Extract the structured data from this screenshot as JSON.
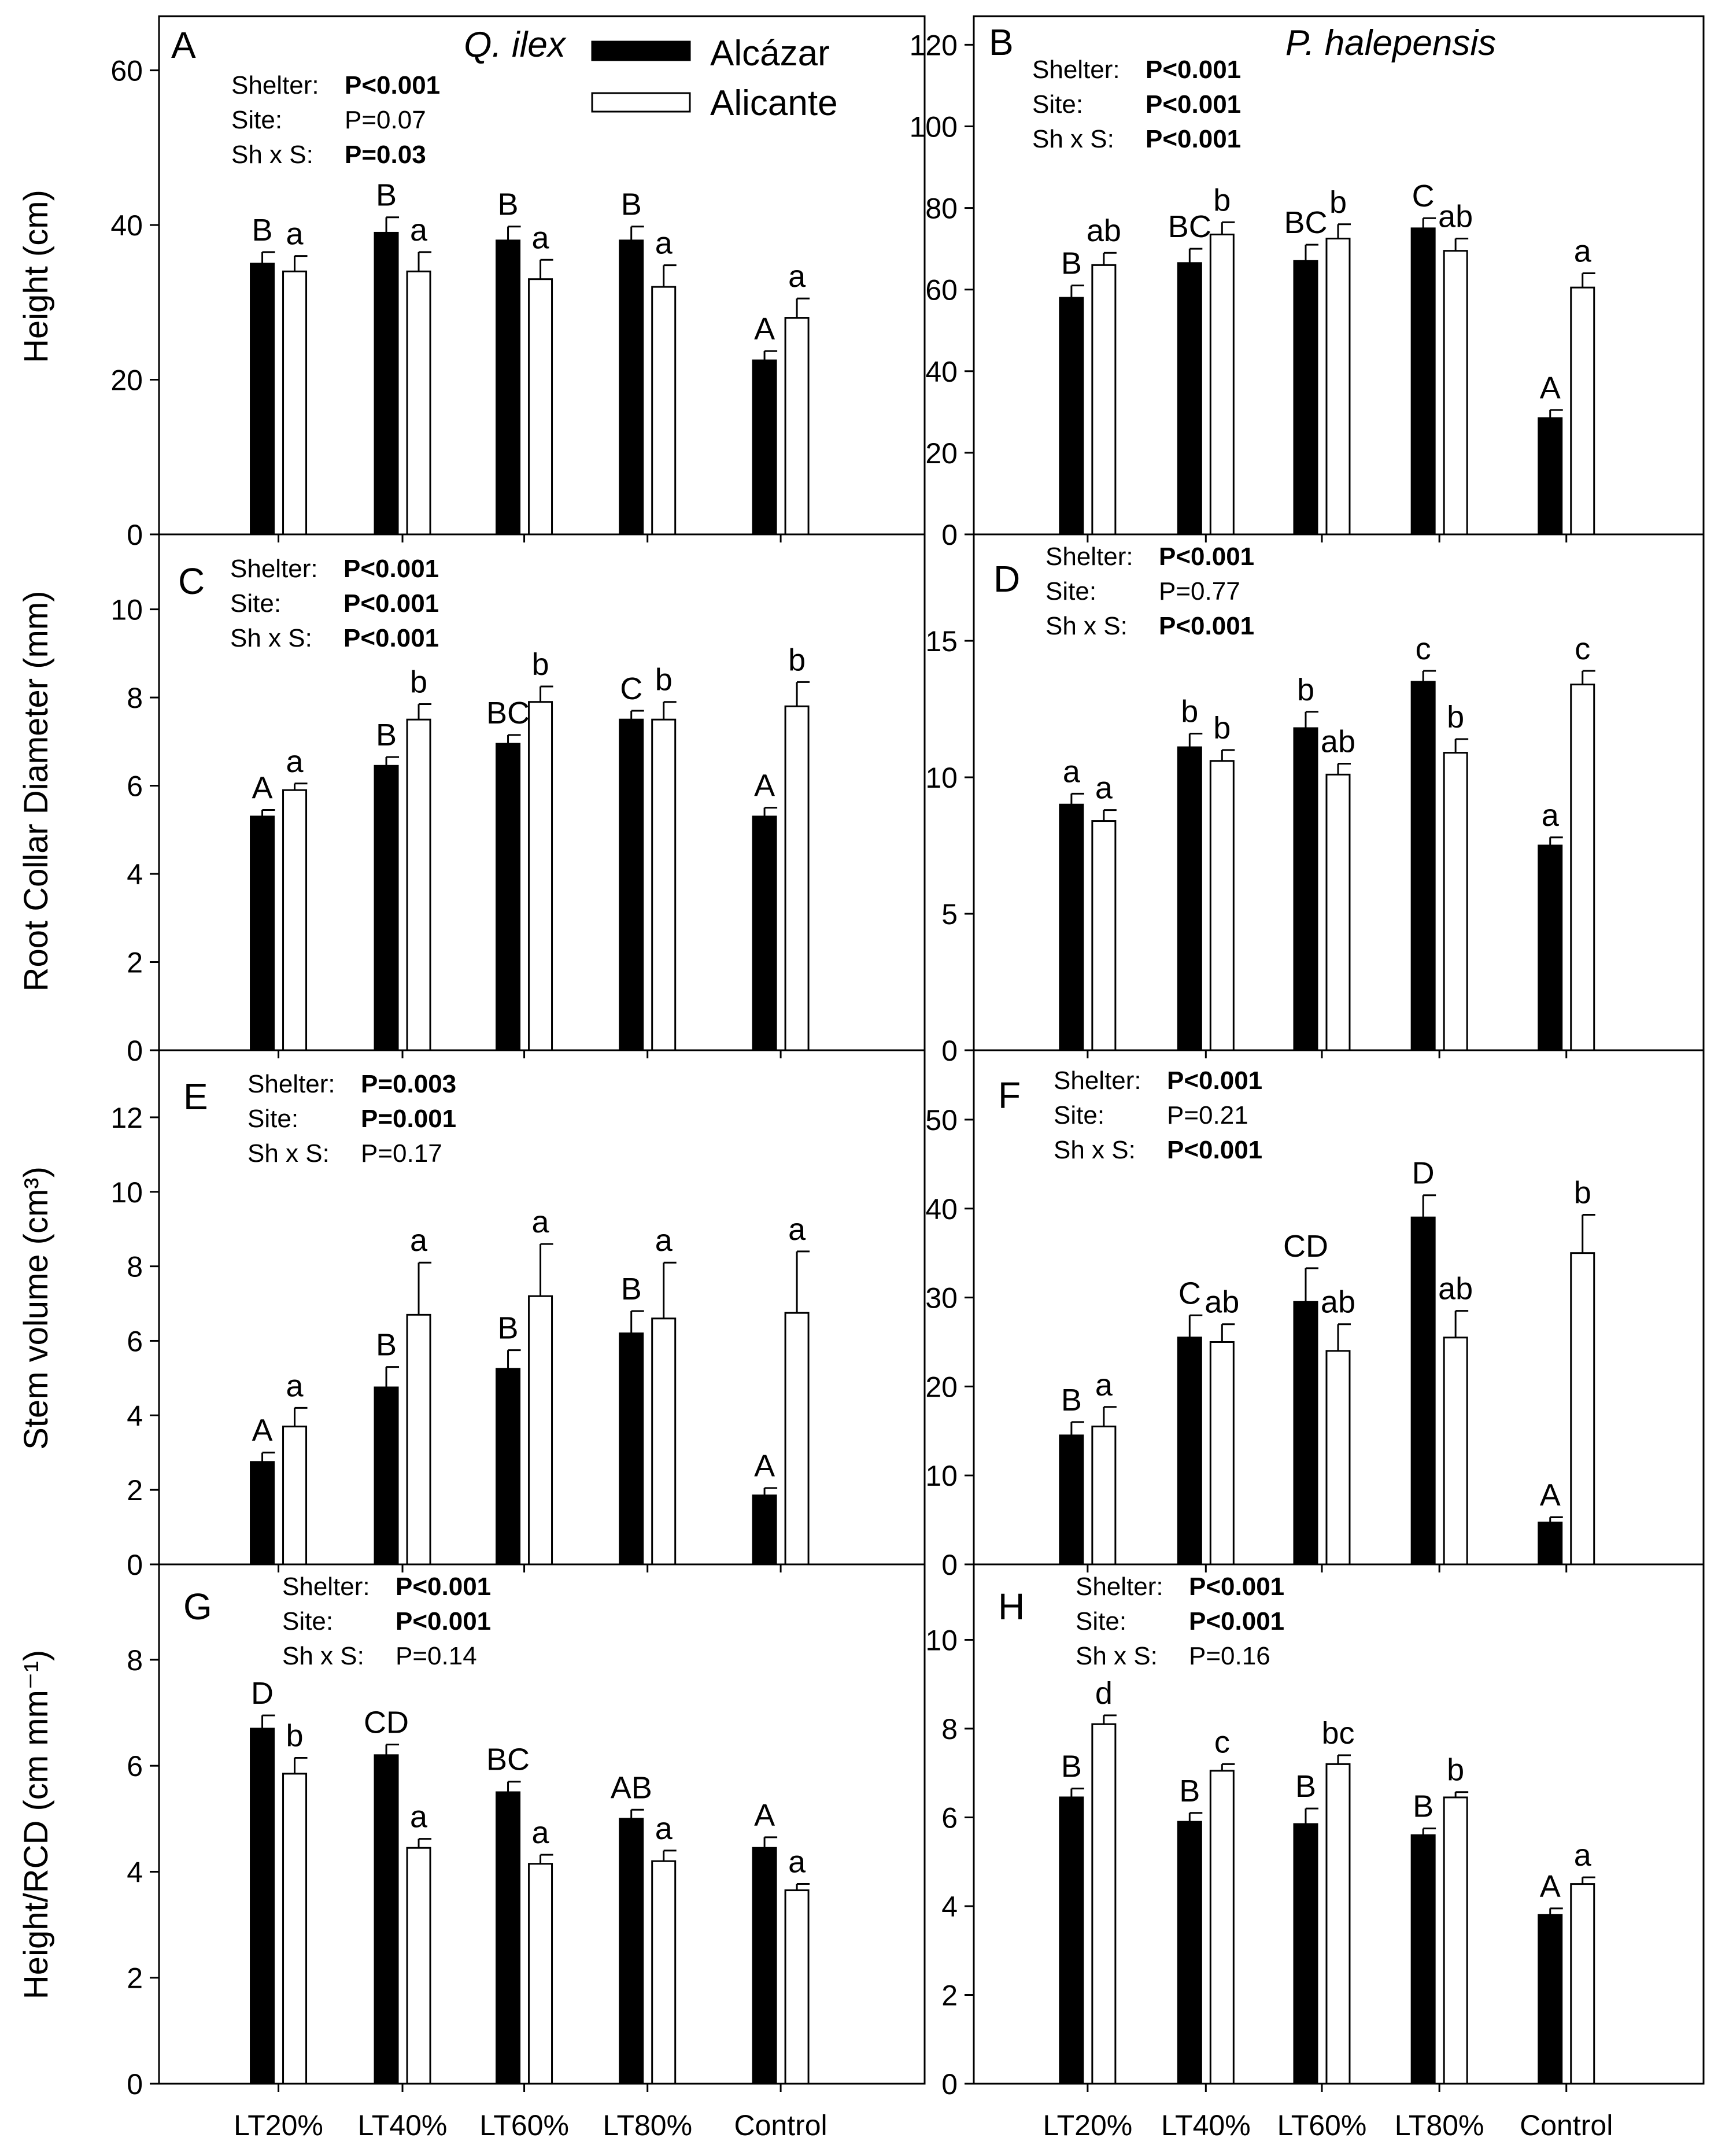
{
  "figure": {
    "categories": [
      "LT20%",
      "LT40%",
      "LT60%",
      "LT80%",
      "Control"
    ],
    "legend": {
      "position": "top-center",
      "entries": [
        {
          "name": "Alcázar",
          "color": "#000000"
        },
        {
          "name": "Alicante",
          "color": "#ffffff"
        }
      ]
    },
    "species": [
      "Q. ilex",
      "P. halepensis"
    ]
  },
  "chart_data": [
    {
      "panel": "A",
      "type": "bar",
      "ylabel": "Height (cm)",
      "ylim": [
        0,
        67
      ],
      "yticks": [
        0,
        20,
        40,
        60
      ],
      "categories": [
        "LT20%",
        "LT40%",
        "LT60%",
        "LT80%",
        "Control"
      ],
      "series": [
        {
          "name": "Alcázar",
          "values": [
            35,
            39,
            38,
            38,
            22.5
          ],
          "errors": [
            1.5,
            2,
            1.8,
            1.8,
            1.2
          ],
          "letters": [
            "B",
            "B",
            "B",
            "B",
            "A"
          ]
        },
        {
          "name": "Alicante",
          "values": [
            34,
            34,
            33,
            32,
            28
          ],
          "errors": [
            2,
            2.5,
            2.5,
            2.8,
            2.5
          ],
          "letters": [
            "a",
            "a",
            "a",
            "a",
            "a"
          ]
        }
      ],
      "stats": [
        [
          "Shelter:",
          "P<0.001",
          true
        ],
        [
          "Site:",
          "P=0.07",
          false
        ],
        [
          "Sh x S:",
          "P=0.03",
          true
        ]
      ]
    },
    {
      "panel": "B",
      "type": "bar",
      "ylabel": "",
      "ylim": [
        0,
        127
      ],
      "yticks": [
        0,
        20,
        40,
        60,
        80,
        100,
        120
      ],
      "categories": [
        "LT20%",
        "LT40%",
        "LT60%",
        "LT80%",
        "Control"
      ],
      "series": [
        {
          "name": "Alcázar",
          "values": [
            58,
            66.5,
            67,
            75,
            28.5
          ],
          "errors": [
            3,
            3.5,
            4,
            2.5,
            2
          ],
          "letters": [
            "B",
            "BC",
            "BC",
            "C",
            "A"
          ]
        },
        {
          "name": "Alicante",
          "values": [
            66,
            73.5,
            72.5,
            69.5,
            60.5
          ],
          "errors": [
            3,
            3,
            3.5,
            3,
            3.5
          ],
          "letters": [
            "ab",
            "b",
            "b",
            "ab",
            "a"
          ]
        }
      ],
      "stats": [
        [
          "Shelter:",
          "P<0.001",
          true
        ],
        [
          "Site:",
          "P<0.001",
          true
        ],
        [
          "Sh x S:",
          "P<0.001",
          true
        ]
      ]
    },
    {
      "panel": "C",
      "type": "bar",
      "ylabel": "Root Collar Diameter (mm)",
      "ylim": [
        0,
        11.7
      ],
      "yticks": [
        0,
        2,
        4,
        6,
        8,
        10
      ],
      "categories": [
        "LT20%",
        "LT40%",
        "LT60%",
        "LT80%",
        "Control"
      ],
      "series": [
        {
          "name": "Alcázar",
          "values": [
            5.3,
            6.45,
            6.95,
            7.5,
            5.3
          ],
          "errors": [
            0.15,
            0.2,
            0.2,
            0.2,
            0.2
          ],
          "letters": [
            "A",
            "B",
            "BC",
            "C",
            "A"
          ]
        },
        {
          "name": "Alicante",
          "values": [
            5.9,
            7.5,
            7.9,
            7.5,
            7.8
          ],
          "errors": [
            0.15,
            0.35,
            0.35,
            0.4,
            0.55
          ],
          "letters": [
            "a",
            "b",
            "b",
            "b",
            "b"
          ]
        }
      ],
      "stats": [
        [
          "Shelter:",
          "P<0.001",
          true
        ],
        [
          "Site:",
          "P<0.001",
          true
        ],
        [
          "Sh x S:",
          "P<0.001",
          true
        ]
      ]
    },
    {
      "panel": "D",
      "type": "bar",
      "ylabel": "",
      "ylim": [
        0,
        18.9
      ],
      "yticks": [
        0,
        5,
        10,
        15
      ],
      "categories": [
        "LT20%",
        "LT40%",
        "LT60%",
        "LT80%",
        "Control"
      ],
      "series": [
        {
          "name": "Alcázar",
          "values": [
            9,
            11.1,
            11.8,
            13.5,
            7.5
          ],
          "errors": [
            0.4,
            0.5,
            0.6,
            0.4,
            0.3
          ],
          "letters": [
            "a",
            "b",
            "b",
            "c",
            "a"
          ]
        },
        {
          "name": "Alicante",
          "values": [
            8.4,
            10.6,
            10.1,
            10.9,
            13.4
          ],
          "errors": [
            0.4,
            0.4,
            0.4,
            0.5,
            0.5
          ],
          "letters": [
            "a",
            "b",
            "ab",
            "b",
            "c"
          ]
        }
      ],
      "stats": [
        [
          "Shelter:",
          "P<0.001",
          true
        ],
        [
          "Site:",
          "P=0.77",
          false
        ],
        [
          "Sh x S:",
          "P<0.001",
          true
        ]
      ]
    },
    {
      "panel": "E",
      "type": "bar",
      "ylabel": "Stem volume (cm³)",
      "ylim": [
        0,
        13.8
      ],
      "yticks": [
        0,
        2,
        4,
        6,
        8,
        10,
        12
      ],
      "categories": [
        "LT20%",
        "LT40%",
        "LT60%",
        "LT80%",
        "Control"
      ],
      "series": [
        {
          "name": "Alcázar",
          "values": [
            2.75,
            4.75,
            5.25,
            6.2,
            1.85
          ],
          "errors": [
            0.25,
            0.55,
            0.5,
            0.6,
            0.2
          ],
          "letters": [
            "A",
            "B",
            "B",
            "B",
            "A"
          ]
        },
        {
          "name": "Alicante",
          "values": [
            3.7,
            6.7,
            7.2,
            6.6,
            6.75
          ],
          "errors": [
            0.5,
            1.4,
            1.4,
            1.5,
            1.65
          ],
          "letters": [
            "a",
            "a",
            "a",
            "a",
            "a"
          ]
        }
      ],
      "stats": [
        [
          "Shelter:",
          "P=0.003",
          true
        ],
        [
          "Site:",
          "P=0.001",
          true
        ],
        [
          "Sh x S:",
          "P=0.17",
          false
        ]
      ]
    },
    {
      "panel": "F",
      "type": "bar",
      "ylabel": "",
      "ylim": [
        0,
        57.8
      ],
      "yticks": [
        0,
        10,
        20,
        30,
        40,
        50
      ],
      "categories": [
        "LT20%",
        "LT40%",
        "LT60%",
        "LT80%",
        "Control"
      ],
      "series": [
        {
          "name": "Alcázar",
          "values": [
            14.5,
            25.5,
            29.5,
            39,
            4.7
          ],
          "errors": [
            1.5,
            2.5,
            3.8,
            2.5,
            0.6
          ],
          "letters": [
            "B",
            "C",
            "CD",
            "D",
            "A"
          ]
        },
        {
          "name": "Alicante",
          "values": [
            15.5,
            25,
            24,
            25.5,
            35
          ],
          "errors": [
            2.2,
            2,
            3,
            3,
            4.3
          ],
          "letters": [
            "a",
            "ab",
            "ab",
            "ab",
            "b"
          ]
        }
      ],
      "stats": [
        [
          "Shelter:",
          "P<0.001",
          true
        ],
        [
          "Site:",
          "P=0.21",
          false
        ],
        [
          "Sh x S:",
          "P<0.001",
          true
        ]
      ]
    },
    {
      "panel": "G",
      "type": "bar",
      "ylabel": "Height/RCD (cm mm⁻¹)",
      "ylim": [
        0,
        9.8
      ],
      "yticks": [
        0,
        2,
        4,
        6,
        8
      ],
      "categories": [
        "LT20%",
        "LT40%",
        "LT60%",
        "LT80%",
        "Control"
      ],
      "series": [
        {
          "name": "Alcázar",
          "values": [
            6.7,
            6.2,
            5.5,
            5,
            4.45
          ],
          "errors": [
            0.25,
            0.2,
            0.2,
            0.17,
            0.2
          ],
          "letters": [
            "D",
            "CD",
            "BC",
            "AB",
            "A"
          ]
        },
        {
          "name": "Alicante",
          "values": [
            5.85,
            4.45,
            4.15,
            4.2,
            3.65
          ],
          "errors": [
            0.3,
            0.17,
            0.17,
            0.2,
            0.12
          ],
          "letters": [
            "b",
            "a",
            "a",
            "a",
            "a"
          ]
        }
      ],
      "stats": [
        [
          "Shelter:",
          "P<0.001",
          true
        ],
        [
          "Site:",
          "P<0.001",
          true
        ],
        [
          "Sh x S:",
          "P=0.14",
          false
        ]
      ]
    },
    {
      "panel": "H",
      "type": "bar",
      "ylabel": "",
      "ylim": [
        0,
        11.7
      ],
      "yticks": [
        0,
        2,
        4,
        6,
        8,
        10
      ],
      "categories": [
        "LT20%",
        "LT40%",
        "LT60%",
        "LT80%",
        "Control"
      ],
      "series": [
        {
          "name": "Alcázar",
          "values": [
            6.45,
            5.9,
            5.85,
            5.6,
            3.8
          ],
          "errors": [
            0.2,
            0.2,
            0.35,
            0.15,
            0.15
          ],
          "letters": [
            "B",
            "B",
            "B",
            "B",
            "A"
          ]
        },
        {
          "name": "Alicante",
          "values": [
            8.1,
            7.05,
            7.2,
            6.45,
            4.5
          ],
          "errors": [
            0.2,
            0.15,
            0.2,
            0.12,
            0.15
          ],
          "letters": [
            "d",
            "c",
            "bc",
            "b",
            "a"
          ]
        }
      ],
      "stats": [
        [
          "Shelter:",
          "P<0.001",
          true
        ],
        [
          "Site:",
          "P<0.001",
          true
        ],
        [
          "Sh x S:",
          "P=0.16",
          false
        ]
      ]
    }
  ]
}
